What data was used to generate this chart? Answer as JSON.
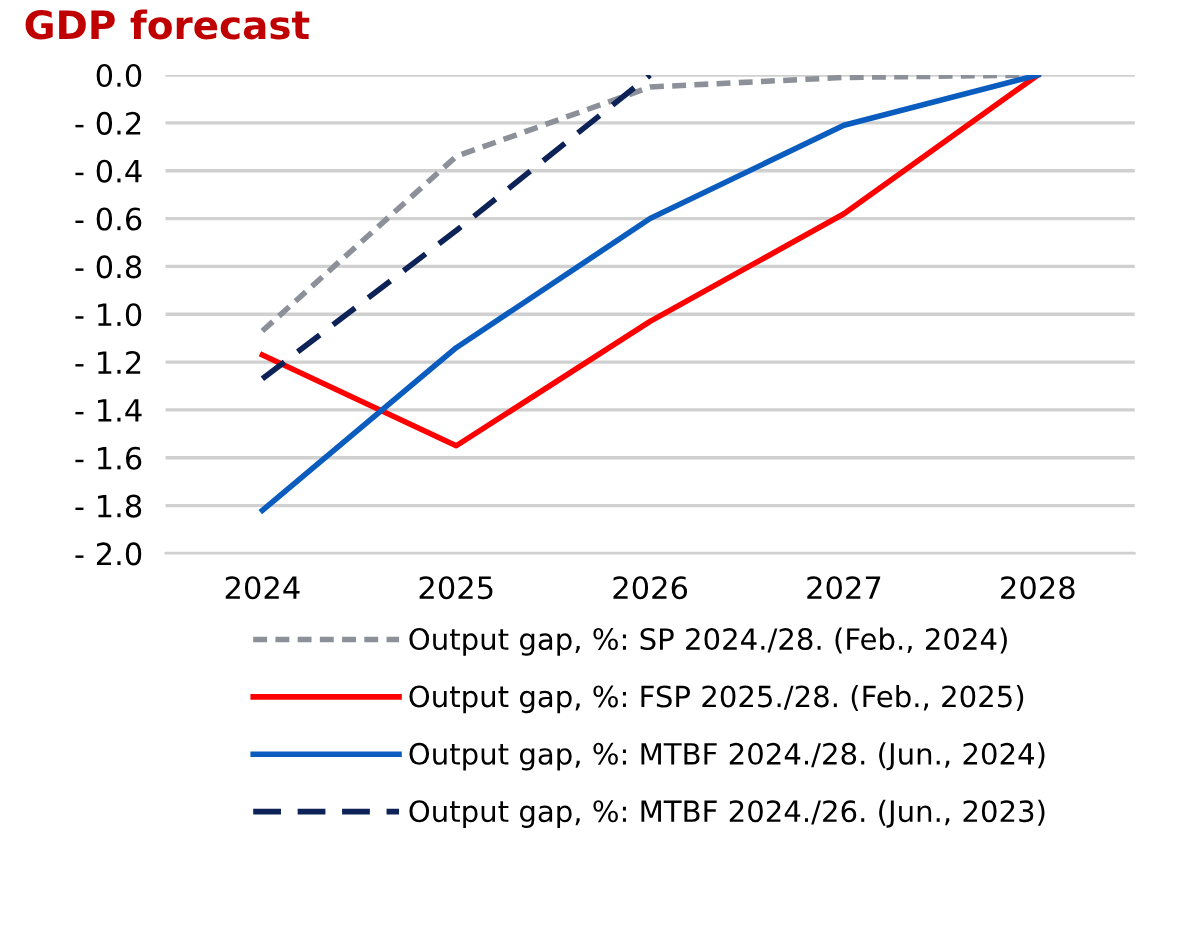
{
  "chart_data": {
    "type": "line",
    "title": "GDP forecast",
    "categories": [
      "2024",
      "2025",
      "2026",
      "2027",
      "2028"
    ],
    "ylim": [
      -2.0,
      0.0
    ],
    "yticks": [
      {
        "value": 0.0,
        "label": "0.0"
      },
      {
        "value": -0.2,
        "label": "- 0.2"
      },
      {
        "value": -0.4,
        "label": "- 0.4"
      },
      {
        "value": -0.6,
        "label": "- 0.6"
      },
      {
        "value": -0.8,
        "label": "- 0.8"
      },
      {
        "value": -1.0,
        "label": "- 1.0"
      },
      {
        "value": -1.2,
        "label": "- 1.2"
      },
      {
        "value": -1.4,
        "label": "- 1.4"
      },
      {
        "value": -1.6,
        "label": "- 1.6"
      },
      {
        "value": -1.8,
        "label": "- 1.8"
      },
      {
        "value": -2.0,
        "label": "- 2.0"
      }
    ],
    "grid": "y",
    "legend": "bottom",
    "marker": "none",
    "series": [
      {
        "name": "Output gap, %: SP 2024./28. (Feb., 2024)",
        "color": "#8c9099",
        "line_style": "dotted",
        "values": [
          -1.07,
          -0.34,
          -0.05,
          -0.01,
          0.0
        ]
      },
      {
        "name": "Output gap, %: FSP 2025./28. (Feb., 2025)",
        "color": "#ff0000",
        "line_style": "solid",
        "values": [
          -1.17,
          -1.55,
          -1.03,
          -0.58,
          0.0
        ]
      },
      {
        "name": "Output gap, %: MTBF 2024./28. (Jun., 2024)",
        "color": "#0a5cbf",
        "line_style": "solid",
        "values": [
          -1.82,
          -1.14,
          -0.6,
          -0.21,
          0.0
        ]
      },
      {
        "name": "Output gap, %: MTBF 2024./26. (Jun., 2023)",
        "color": "#0d2357",
        "line_style": "dashed",
        "values": [
          -1.27,
          -0.65,
          0.0,
          null,
          null
        ]
      }
    ]
  }
}
